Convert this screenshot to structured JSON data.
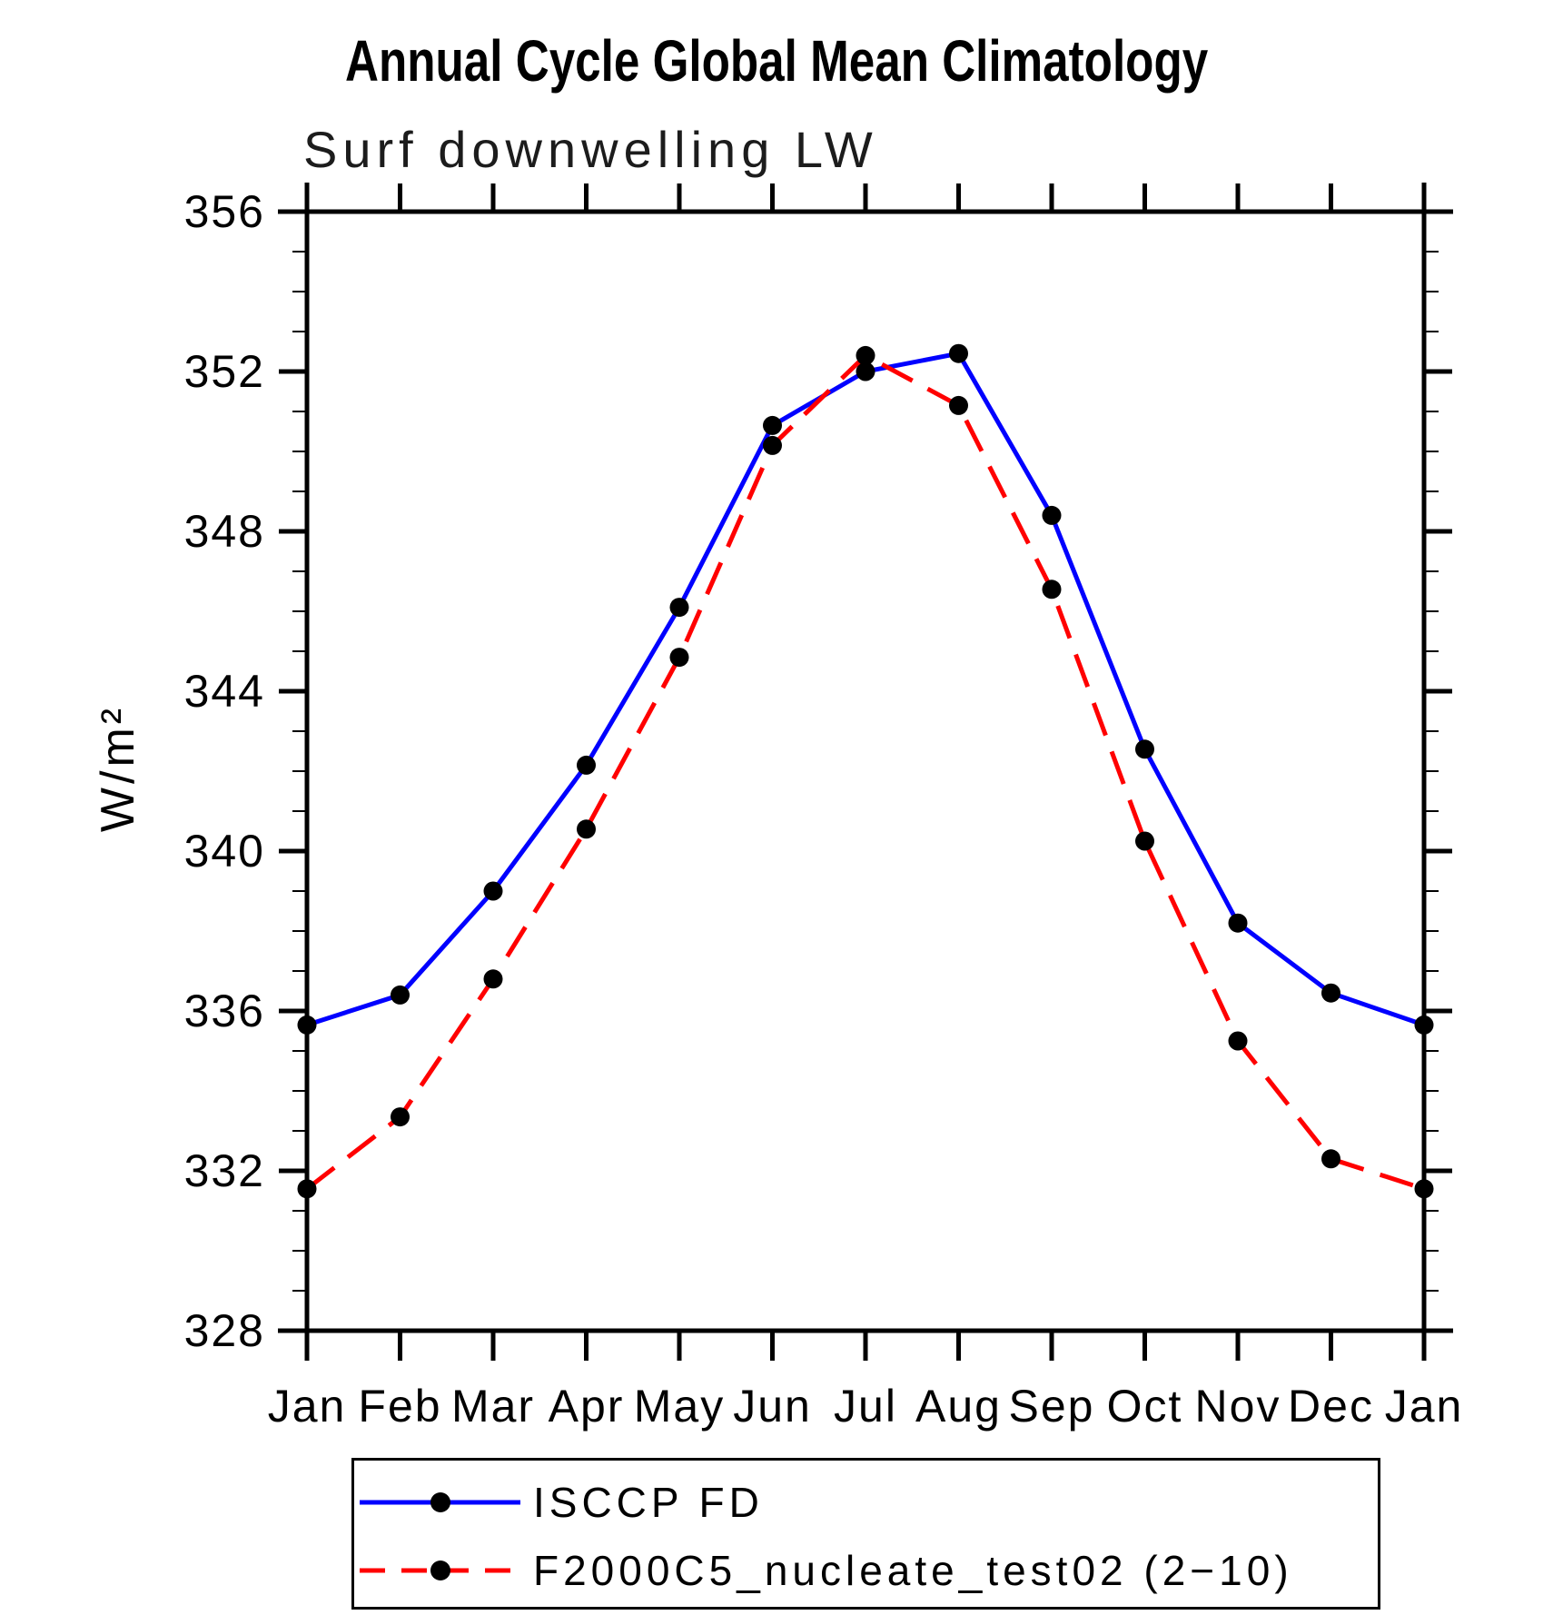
{
  "page": {
    "background": "#ffffff"
  },
  "chart_data": {
    "type": "line",
    "title": "Annual Cycle Global Mean Climatology",
    "subtitle": "Surf downwelling LW",
    "ylabel": "W/m²",
    "xlabel": "",
    "categories": [
      "Jan",
      "Feb",
      "Mar",
      "Apr",
      "May",
      "Jun",
      "Jul",
      "Aug",
      "Sep",
      "Oct",
      "Nov",
      "Dec",
      "Jan"
    ],
    "ylim": [
      328,
      356
    ],
    "ytick_major_step": 4,
    "ytick_minor_step": 1,
    "grid": "off",
    "legend_position": "below-plot",
    "axis_color": "#000000",
    "marker_color": "#000000",
    "series": [
      {
        "name": "ISCCP FD",
        "color": "#0000ff",
        "style": "solid",
        "marker": "filled-circle",
        "values": [
          335.65,
          336.4,
          339.0,
          342.15,
          346.1,
          350.65,
          352.0,
          352.45,
          348.4,
          342.55,
          338.2,
          336.45,
          335.65
        ]
      },
      {
        "name": "F2000C5_nucleate_test02 (2−10)",
        "color": "#ff0000",
        "style": "dashed",
        "marker": "filled-circle",
        "values": [
          331.55,
          333.35,
          336.8,
          340.55,
          344.85,
          350.15,
          352.4,
          351.15,
          346.55,
          340.25,
          335.25,
          332.3,
          331.55
        ]
      }
    ]
  }
}
